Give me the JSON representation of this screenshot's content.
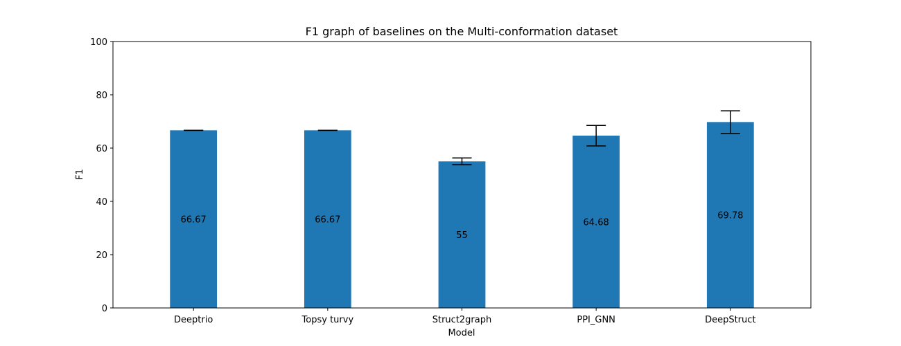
{
  "chart_data": {
    "type": "bar",
    "title": "F1 graph of baselines on the Multi-conformation dataset",
    "xlabel": "Model",
    "ylabel": "F1",
    "categories": [
      "Deeptrio",
      "Topsy turvy",
      "Struct2graph",
      "PPI_GNN",
      "DeepStruct"
    ],
    "values": [
      66.67,
      66.67,
      55.0,
      64.68,
      69.78
    ],
    "value_labels": [
      "66.67",
      "66.67",
      "55",
      "64.68",
      "69.78"
    ],
    "error_low": [
      66.67,
      66.67,
      53.8,
      60.8,
      65.5
    ],
    "error_high": [
      66.67,
      66.67,
      56.3,
      68.5,
      74.0
    ],
    "ylim": [
      0,
      100
    ],
    "yticks": [
      0,
      20,
      40,
      60,
      80,
      100
    ],
    "ytick_labels": [
      "0",
      "20",
      "40",
      "60",
      "80",
      "100"
    ],
    "grid": false,
    "bar_color": "#1f77b4",
    "errorbar_color": "#000000"
  }
}
